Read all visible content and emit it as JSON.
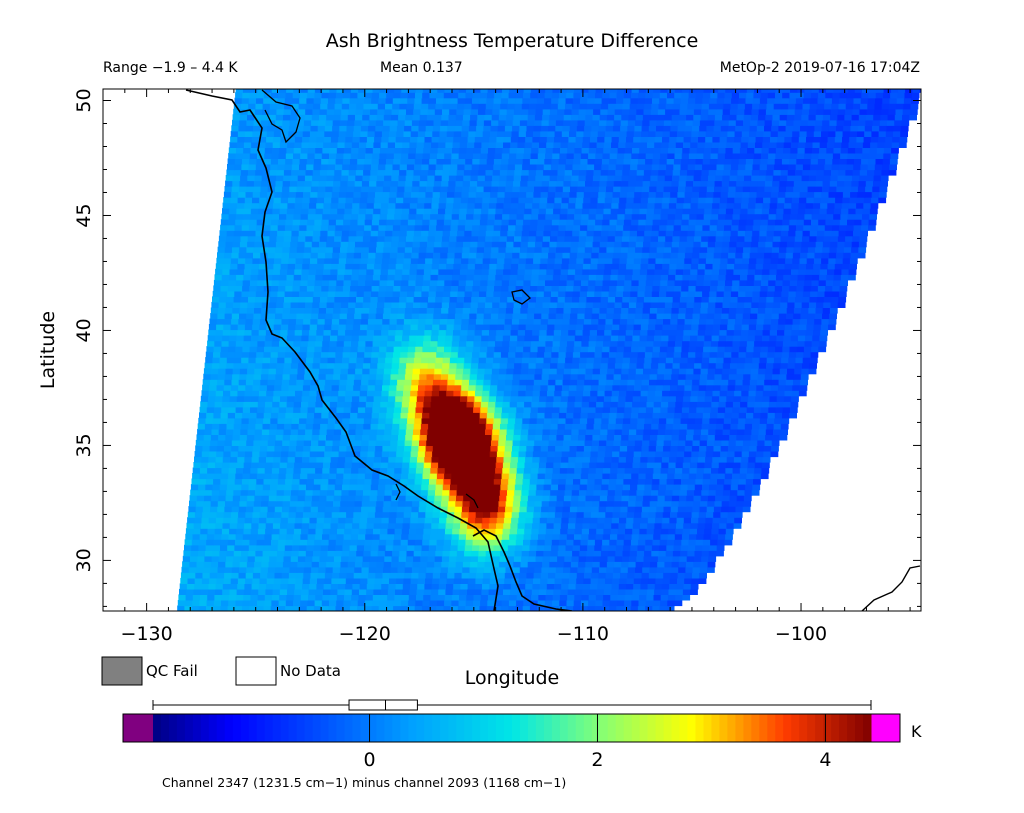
{
  "chart_data": {
    "type": "heatmap",
    "title": "Ash Brightness Temperature Difference",
    "subtitle": {
      "range": "Range −1.9 – 4.4 K",
      "mean": "Mean 0.137",
      "source": "MetOp-2 2019-07-16 17:04Z"
    },
    "xlabel": "Longitude",
    "ylabel": "Latitude",
    "xlim": [
      -132,
      -94.5
    ],
    "ylim": [
      27.8,
      50.5
    ],
    "xticks": [
      -130,
      -120,
      -110,
      -100
    ],
    "xtick_labels": [
      "−130",
      "−120",
      "−110",
      "−100"
    ],
    "yticks": [
      30,
      35,
      40,
      45,
      50
    ],
    "ytick_labels": [
      "30",
      "35",
      "40",
      "45",
      "50"
    ],
    "swath_corners": {
      "top_left_lon": -125.9,
      "bottom_left_lon": -128.6,
      "bottom_right_lon": -105.9,
      "top_right_lon": -94.5
    },
    "hotspots": [
      {
        "lon": -117.5,
        "lat": 37.8,
        "value": 2.4
      },
      {
        "lon": -116.0,
        "lat": 35.0,
        "value": 3.8
      },
      {
        "lon": -115.2,
        "lat": 34.5,
        "value": 3.5
      },
      {
        "lon": -114.6,
        "lat": 32.2,
        "value": 4.2
      },
      {
        "lon": -116.5,
        "lat": 36.2,
        "value": 2.8
      }
    ],
    "background_value": 0.3,
    "legend": {
      "qc_fail": {
        "label": "QC Fail",
        "color": "#808080"
      },
      "no_data": {
        "label": "No Data",
        "color": "#ffffff"
      }
    },
    "colorbar": {
      "range": [
        -1.9,
        4.4
      ],
      "ticks": [
        0,
        2,
        4
      ],
      "tick_labels": [
        "0",
        "2",
        "4"
      ],
      "unit": "K",
      "under_color": "#800080",
      "over_color": "#ff00ff",
      "box_whisker": {
        "min": -1.9,
        "q1": -0.18,
        "median": 0.14,
        "q3": 0.42,
        "max": 4.4
      }
    },
    "footnote": "Channel 2347 (1231.5 cm−1) minus channel 2093 (1168 cm−1)"
  }
}
